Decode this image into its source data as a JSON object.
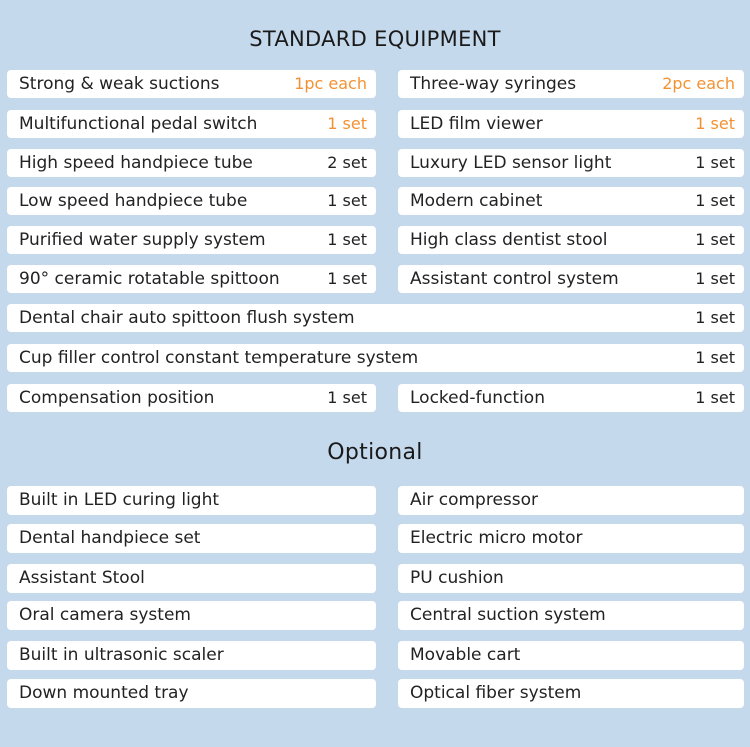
{
  "standard": {
    "title": "STANDARD EQUIPMENT",
    "rows": [
      {
        "left": {
          "name": "Strong & weak suctions",
          "qty": "1pc each",
          "highlight": true
        },
        "right": {
          "name": "Three-way syringes",
          "qty": "2pc each",
          "highlight": true
        }
      },
      {
        "left": {
          "name": "Multifunctional pedal switch",
          "qty": "1 set",
          "highlight": true
        },
        "right": {
          "name": "LED film viewer",
          "qty": "1 set",
          "highlight": true
        }
      },
      {
        "left": {
          "name": "High speed handpiece tube",
          "qty": "2 set",
          "highlight": false
        },
        "right": {
          "name": "Luxury LED sensor light",
          "qty": "1 set",
          "highlight": false
        }
      },
      {
        "left": {
          "name": "Low speed handpiece tube",
          "qty": "1 set",
          "highlight": false
        },
        "right": {
          "name": "Modern cabinet",
          "qty": "1 set",
          "highlight": false
        }
      },
      {
        "left": {
          "name": "Purified water supply system",
          "qty": "1 set",
          "highlight": false
        },
        "right": {
          "name": "High class dentist stool",
          "qty": "1 set",
          "highlight": false
        }
      },
      {
        "left": {
          "name": "90° ceramic rotatable spittoon",
          "qty": "1 set",
          "highlight": false
        },
        "right": {
          "name": "Assistant control system",
          "qty": "1 set",
          "highlight": false
        }
      }
    ],
    "full_rows": [
      {
        "name": "Dental chair auto spittoon flush system",
        "qty": "1 set"
      },
      {
        "name": "Cup filler control constant temperature system",
        "qty": "1 set"
      }
    ],
    "last_row": {
      "left": {
        "name": "Compensation position",
        "qty": "1 set"
      },
      "right": {
        "name": "Locked-function",
        "qty": "1 set"
      }
    }
  },
  "optional": {
    "title": "Optional",
    "rows": [
      {
        "left": "Built in LED curing light",
        "right": "Air compressor"
      },
      {
        "left": "Dental handpiece set",
        "right": "Electric micro motor"
      },
      {
        "left": "Assistant Stool",
        "right": "PU cushion"
      },
      {
        "left": "Oral camera system",
        "right": "Central suction system"
      },
      {
        "left": "Built in ultrasonic scaler",
        "right": "Movable cart"
      },
      {
        "left": "Down mounted tray",
        "right": "Optical fiber system"
      }
    ]
  },
  "colors": {
    "background": "#c5d9ec",
    "box": "#ffffff",
    "highlight": "#f39233"
  }
}
